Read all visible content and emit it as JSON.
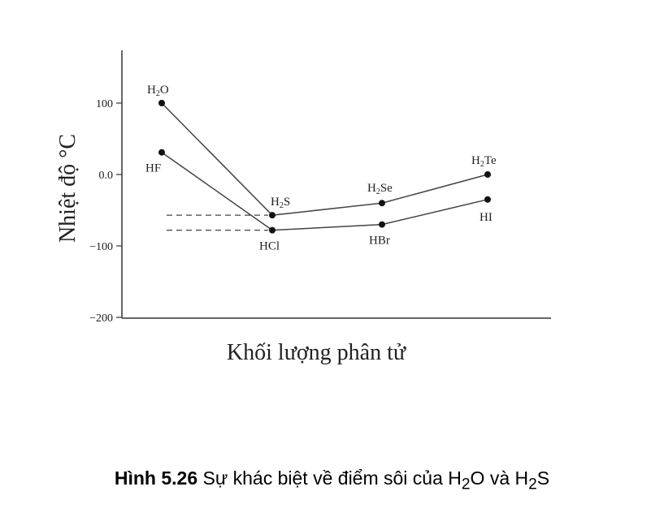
{
  "chart_data": {
    "type": "line",
    "ylabel": "Nhiệt độ °C",
    "xlabel": "Khối lượng phân tử",
    "ylim": [
      -200,
      150
    ],
    "yticks": [
      {
        "value": 100,
        "label": "100"
      },
      {
        "value": 0,
        "label": "0.0"
      },
      {
        "value": -100,
        "label": "-100"
      },
      {
        "value": -200,
        "label": "-200"
      }
    ],
    "grid": false,
    "series": [
      {
        "points": [
          {
            "x": 1,
            "y": 100,
            "label": "H",
            "sub": "2",
            "label_rest": "O"
          },
          {
            "x": 2,
            "y": -57,
            "label": "H",
            "sub": "2",
            "label_rest": "S"
          },
          {
            "x": 3,
            "y": -40,
            "label": "H",
            "sub": "2",
            "label_rest": "Se"
          },
          {
            "x": 4,
            "y": 0,
            "label": "H",
            "sub": "2",
            "label_rest": "Te"
          }
        ]
      },
      {
        "points": [
          {
            "x": 1,
            "y": 31,
            "label": "HF",
            "sub": "",
            "label_rest": ""
          },
          {
            "x": 2,
            "y": -78,
            "label": "HCl",
            "sub": "",
            "label_rest": ""
          },
          {
            "x": 3,
            "y": -70,
            "label": "HBr",
            "sub": "",
            "label_rest": ""
          },
          {
            "x": 4,
            "y": -35,
            "label": "HI",
            "sub": "",
            "label_rest": ""
          }
        ]
      }
    ],
    "reference_lines": [
      {
        "y": -57,
        "style": "dashed"
      },
      {
        "y": -78,
        "style": "dashed"
      }
    ]
  },
  "caption": {
    "bold": "Hình 5.26",
    "text_1": " Sự khác biệt về điểm sôi của H",
    "sub_1": "2",
    "text_2": "O và H",
    "sub_2": "2",
    "text_3": "S"
  }
}
